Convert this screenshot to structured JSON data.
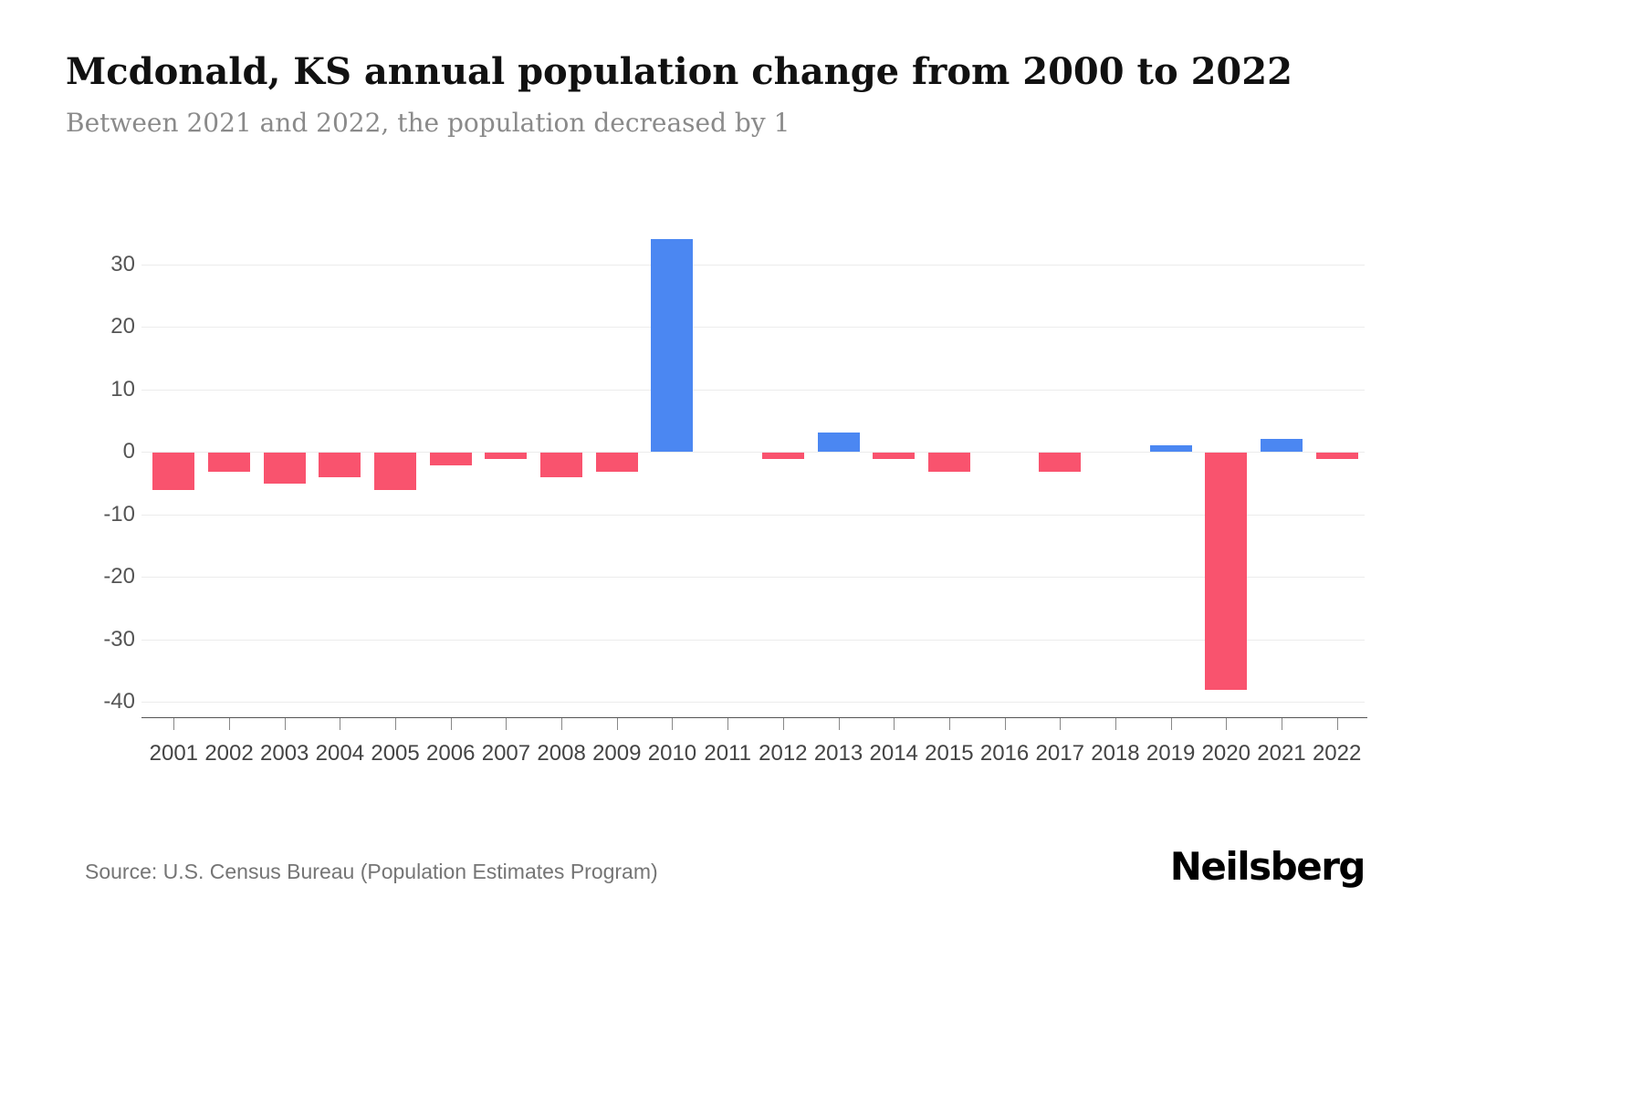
{
  "header": {
    "title": "Mcdonald, KS annual population change from 2000 to 2022",
    "subtitle": "Between 2021 and 2022, the population decreased by 1"
  },
  "footer": {
    "source": "Source: U.S. Census Bureau (Population Estimates Program)",
    "logo": "Neilsberg"
  },
  "chart_data": {
    "type": "bar",
    "title": "Mcdonald, KS annual population change from 2000 to 2022",
    "subtitle": "Between 2021 and 2022, the population decreased by 1",
    "xlabel": "",
    "ylabel": "",
    "categories": [
      "2001",
      "2002",
      "2003",
      "2004",
      "2005",
      "2006",
      "2007",
      "2008",
      "2009",
      "2010",
      "2011",
      "2012",
      "2013",
      "2014",
      "2015",
      "2016",
      "2017",
      "2018",
      "2019",
      "2020",
      "2021",
      "2022"
    ],
    "values": [
      -6,
      -3,
      -5,
      -4,
      -6,
      -2,
      -1,
      -4,
      -3,
      34,
      0,
      -1,
      3,
      -1,
      -3,
      0,
      -3,
      0,
      1,
      -38,
      2,
      -1
    ],
    "ylim": [
      -42,
      36
    ],
    "yticks": [
      30,
      20,
      10,
      0,
      -10,
      -20,
      -30,
      -40
    ],
    "grid": true,
    "legend": false,
    "colors": {
      "positive": "#4b87f2",
      "negative": "#f9536e"
    }
  }
}
